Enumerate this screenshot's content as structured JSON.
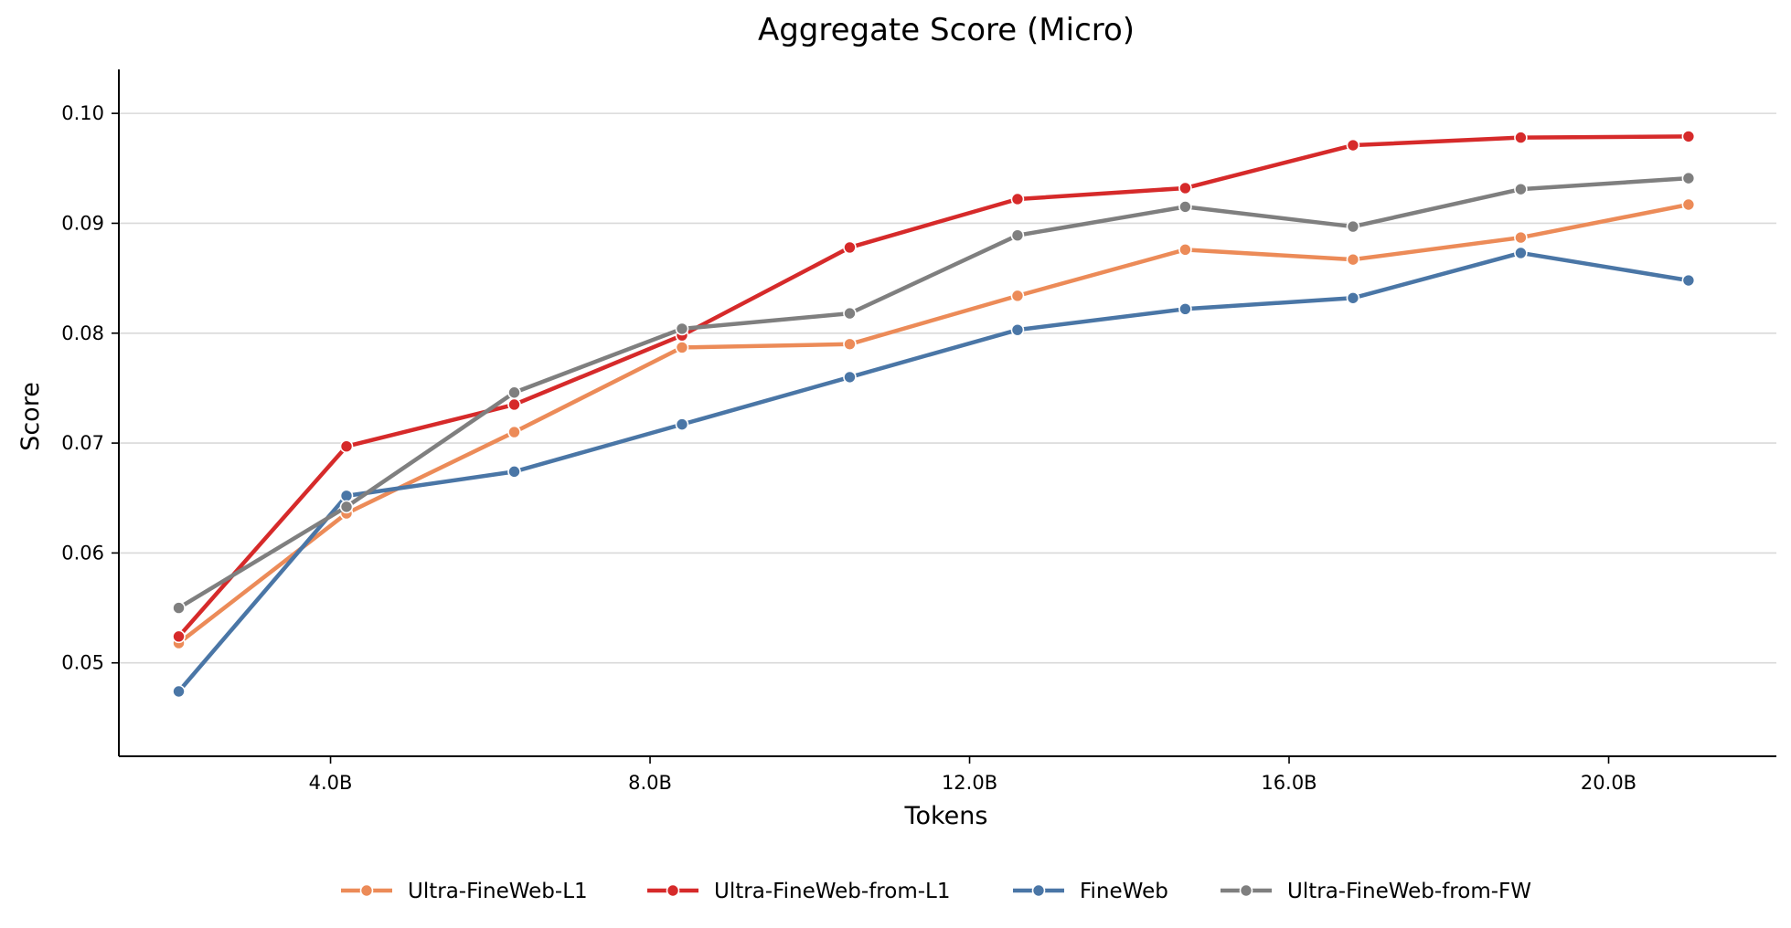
{
  "chart_data": {
    "type": "line",
    "title": "Aggregate Score (Micro)",
    "xlabel": "Tokens",
    "ylabel": "Score",
    "x": [
      2.1,
      4.2,
      6.3,
      8.4,
      10.5,
      12.6,
      14.7,
      16.8,
      18.9,
      21.0
    ],
    "xlim": [
      1.35,
      22.1
    ],
    "ylim": [
      0.0415,
      0.104
    ],
    "x_ticks": [
      4.0,
      8.0,
      12.0,
      16.0,
      20.0
    ],
    "x_tick_labels": [
      "4.0B",
      "8.0B",
      "12.0B",
      "16.0B",
      "20.0B"
    ],
    "y_ticks": [
      0.05,
      0.06,
      0.07,
      0.08,
      0.09,
      0.1
    ],
    "y_tick_labels": [
      "0.05",
      "0.06",
      "0.07",
      "0.08",
      "0.09",
      "0.10"
    ],
    "grid": "horizontal",
    "legend_position": "bottom-center",
    "series": [
      {
        "name": "Ultra-FineWeb-L1",
        "color": "#ec8b58",
        "values": [
          0.0518,
          0.0636,
          0.071,
          0.0787,
          0.079,
          0.0834,
          0.0876,
          0.0867,
          0.0887,
          0.0917
        ]
      },
      {
        "name": "Ultra-FineWeb-from-L1",
        "color": "#d62a2a",
        "values": [
          0.0524,
          0.0697,
          0.0735,
          0.0798,
          0.0878,
          0.0922,
          0.0932,
          0.0971,
          0.0978,
          0.0979
        ]
      },
      {
        "name": "FineWeb",
        "color": "#4a76a6",
        "values": [
          0.0474,
          0.0652,
          0.0674,
          0.0717,
          0.076,
          0.0803,
          0.0822,
          0.0832,
          0.0873,
          0.0848
        ]
      },
      {
        "name": "Ultra-FineWeb-from-FW",
        "color": "#7f7f7f",
        "values": [
          0.055,
          0.0642,
          0.0746,
          0.0804,
          0.0818,
          0.0889,
          0.0915,
          0.0897,
          0.0931,
          0.0941
        ]
      }
    ]
  }
}
